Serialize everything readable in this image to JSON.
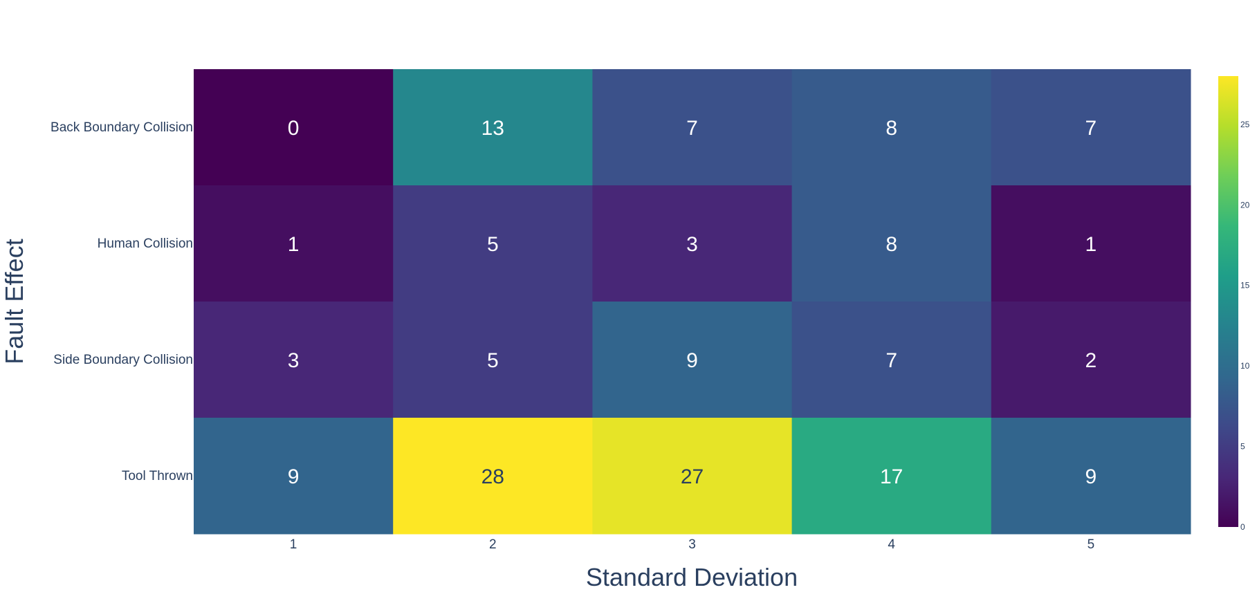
{
  "chart_data": {
    "type": "heatmap",
    "xlabel": "Standard Deviation",
    "ylabel": "Fault Effect",
    "x": [
      "1",
      "2",
      "3",
      "4",
      "5"
    ],
    "y": [
      "Back Boundary Collision",
      "Human Collision",
      "Side Boundary Collision",
      "Tool Thrown"
    ],
    "z": [
      [
        0,
        13,
        7,
        8,
        7
      ],
      [
        1,
        5,
        3,
        8,
        1
      ],
      [
        3,
        5,
        9,
        7,
        2
      ],
      [
        9,
        28,
        27,
        17,
        9
      ]
    ],
    "zrange": [
      0,
      28
    ],
    "colorscale": "Viridis",
    "colorbar": {
      "ticks": [
        "0",
        "5",
        "10",
        "15",
        "20",
        "25"
      ]
    },
    "text_colors": {
      "dark_cells": "#ffffff",
      "light_cells": "#2a3f5f"
    }
  }
}
